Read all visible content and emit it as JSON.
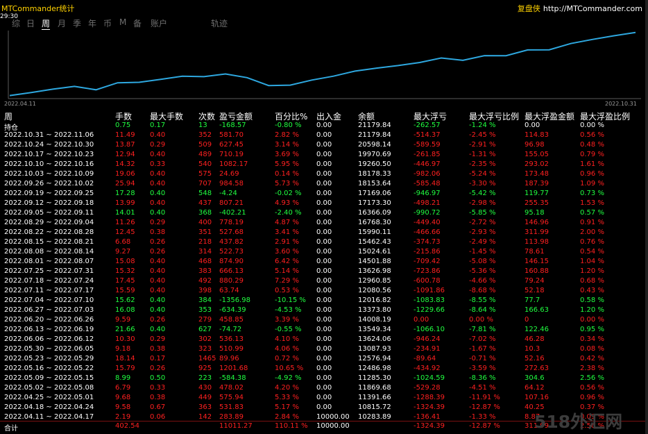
{
  "app": {
    "title": "MTCommander统计",
    "brand": "复盘侠",
    "url": "http://MTCommander.com",
    "clock": "29:30"
  },
  "tabs": [
    "综",
    "日",
    "周",
    "月",
    "季",
    "年",
    "币",
    "M",
    "备",
    "账户",
    "轨迹"
  ],
  "active_tab": "周",
  "chart": {
    "start_label": "2022.04.11",
    "end_label": "2022.10.31",
    "line_color": "#2ea8e0",
    "series": [
      10283.89,
      10815.72,
      11391.66,
      11869.68,
      11285.3,
      12486.98,
      12576.94,
      13087.93,
      13624.06,
      13549.34,
      14008.19,
      13373.8,
      12016.82,
      12080.56,
      12960.85,
      13626.98,
      14501.88,
      15024.61,
      15462.43,
      15990.11,
      16768.3,
      16366.09,
      17173.3,
      17169.06,
      18153.64,
      18178.33,
      19260.5,
      19970.69,
      20598.14,
      21179.84
    ]
  },
  "headers": [
    "周",
    "手数",
    "最大手数",
    "次数",
    "盈亏金额",
    "百分比%",
    "出入金",
    "余额",
    "最大浮亏",
    "最大浮亏比例",
    "最大浮盈金额",
    "最大浮盈比例"
  ],
  "rows": [
    {
      "c": "w",
      "v": [
        "持仓",
        "0.75",
        "0.17",
        "13",
        "-168.57",
        "-0.80 %",
        "0.00",
        "21179.84",
        "-262.57",
        "-1.24 %",
        "0.00",
        "0.00 %"
      ]
    },
    {
      "c": "r",
      "v": [
        "2022.10.31 ~ 2022.11.06",
        "11.49",
        "0.40",
        "352",
        "581.70",
        "2.82 %",
        "0.00",
        "21179.84",
        "-514.37",
        "-2.45 %",
        "114.83",
        "0.56 %"
      ]
    },
    {
      "c": "r",
      "v": [
        "2022.10.24 ~ 2022.10.30",
        "13.87",
        "0.29",
        "509",
        "627.45",
        "3.14 %",
        "0.00",
        "20598.14",
        "-589.59",
        "-2.91 %",
        "96.98",
        "0.48 %"
      ]
    },
    {
      "c": "r",
      "v": [
        "2022.10.17 ~ 2022.10.23",
        "12.94",
        "0.40",
        "489",
        "710.19",
        "3.69 %",
        "0.00",
        "19970.69",
        "-261.85",
        "-1.31 %",
        "155.05",
        "0.79 %"
      ]
    },
    {
      "c": "r",
      "v": [
        "2022.10.10 ~ 2022.10.16",
        "14.32",
        "0.33",
        "540",
        "1082.17",
        "5.95 %",
        "0.00",
        "19260.50",
        "-446.97",
        "-2.35 %",
        "293.02",
        "1.61 %"
      ]
    },
    {
      "c": "r",
      "v": [
        "2022.10.03 ~ 2022.10.09",
        "19.06",
        "0.40",
        "575",
        "24.69",
        "0.14 %",
        "0.00",
        "18178.33",
        "-982.06",
        "-5.24 %",
        "173.48",
        "0.96 %"
      ]
    },
    {
      "c": "r",
      "v": [
        "2022.09.26 ~ 2022.10.02",
        "25.94",
        "0.40",
        "707",
        "984.58",
        "5.73 %",
        "0.00",
        "18153.64",
        "-585.48",
        "-3.30 %",
        "187.39",
        "1.09 %"
      ]
    },
    {
      "c": "g",
      "v": [
        "2022.09.19 ~ 2022.09.25",
        "17.28",
        "0.40",
        "548",
        "-4.24",
        "-0.02 %",
        "0.00",
        "17169.06",
        "-946.97",
        "-5.42 %",
        "119.77",
        "0.73 %"
      ]
    },
    {
      "c": "r",
      "v": [
        "2022.09.12 ~ 2022.09.18",
        "13.99",
        "0.40",
        "437",
        "807.21",
        "4.93 %",
        "0.00",
        "17173.30",
        "-498.21",
        "-2.98 %",
        "255.35",
        "1.53 %"
      ]
    },
    {
      "c": "g",
      "v": [
        "2022.09.05 ~ 2022.09.11",
        "14.01",
        "0.40",
        "368",
        "-402.21",
        "-2.40 %",
        "0.00",
        "16366.09",
        "-990.72",
        "-5.85 %",
        "95.18",
        "0.57 %"
      ]
    },
    {
      "c": "r",
      "v": [
        "2022.08.29 ~ 2022.09.04",
        "11.26",
        "0.29",
        "400",
        "778.19",
        "4.87 %",
        "0.00",
        "16768.30",
        "-449.40",
        "-2.72 %",
        "146.96",
        "0.91 %"
      ]
    },
    {
      "c": "r",
      "v": [
        "2022.08.22 ~ 2022.08.28",
        "12.45",
        "0.38",
        "351",
        "527.68",
        "3.41 %",
        "0.00",
        "15990.11",
        "-466.66",
        "-2.93 %",
        "311.99",
        "2.00 %"
      ]
    },
    {
      "c": "r",
      "v": [
        "2022.08.15 ~ 2022.08.21",
        "6.68",
        "0.26",
        "218",
        "437.82",
        "2.91 %",
        "0.00",
        "15462.43",
        "-374.73",
        "-2.49 %",
        "113.98",
        "0.76 %"
      ]
    },
    {
      "c": "r",
      "v": [
        "2022.08.08 ~ 2022.08.14",
        "9.27",
        "0.26",
        "314",
        "522.73",
        "3.60 %",
        "0.00",
        "15024.61",
        "-215.86",
        "-1.45 %",
        "78.61",
        "0.54 %"
      ]
    },
    {
      "c": "r",
      "v": [
        "2022.08.01 ~ 2022.08.07",
        "15.08",
        "0.40",
        "468",
        "874.90",
        "6.42 %",
        "0.00",
        "14501.88",
        "-709.42",
        "-5.08 %",
        "146.15",
        "1.04 %"
      ]
    },
    {
      "c": "r",
      "v": [
        "2022.07.25 ~ 2022.07.31",
        "15.32",
        "0.40",
        "383",
        "666.13",
        "5.14 %",
        "0.00",
        "13626.98",
        "-723.86",
        "-5.36 %",
        "160.88",
        "1.20 %"
      ]
    },
    {
      "c": "r",
      "v": [
        "2022.07.18 ~ 2022.07.24",
        "17.45",
        "0.40",
        "492",
        "880.29",
        "7.29 %",
        "0.00",
        "12960.85",
        "-600.78",
        "-4.66 %",
        "79.24",
        "0.68 %"
      ]
    },
    {
      "c": "r",
      "v": [
        "2022.07.11 ~ 2022.07.17",
        "15.59",
        "0.40",
        "398",
        "63.74",
        "0.53 %",
        "0.00",
        "12080.56",
        "-1091.86",
        "-8.68 %",
        "52.18",
        "0.43 %"
      ]
    },
    {
      "c": "g",
      "v": [
        "2022.07.04 ~ 2022.07.10",
        "15.62",
        "0.40",
        "384",
        "-1356.98",
        "-10.15 %",
        "0.00",
        "12016.82",
        "-1083.83",
        "-8.55 %",
        "77.7",
        "0.58 %"
      ]
    },
    {
      "c": "g",
      "v": [
        "2022.06.27 ~ 2022.07.03",
        "16.08",
        "0.40",
        "353",
        "-634.39",
        "-4.53 %",
        "0.00",
        "13373.80",
        "-1229.66",
        "-8.64 %",
        "166.63",
        "1.20 %"
      ]
    },
    {
      "c": "r",
      "v": [
        "2022.06.20 ~ 2022.06.26",
        "9.59",
        "0.26",
        "279",
        "458.85",
        "3.39 %",
        "0.00",
        "14008.19",
        "0.00",
        "0.00 %",
        "0",
        "0.00 %"
      ]
    },
    {
      "c": "g",
      "v": [
        "2022.06.13 ~ 2022.06.19",
        "21.66",
        "0.40",
        "627",
        "-74.72",
        "-0.55 %",
        "0.00",
        "13549.34",
        "-1066.10",
        "-7.81 %",
        "122.46",
        "0.95 %"
      ]
    },
    {
      "c": "r",
      "v": [
        "2022.06.06 ~ 2022.06.12",
        "10.30",
        "0.29",
        "302",
        "536.13",
        "4.10 %",
        "0.00",
        "13624.06",
        "-946.24",
        "-7.02 %",
        "46.28",
        "0.34 %"
      ]
    },
    {
      "c": "r",
      "v": [
        "2022.05.30 ~ 2022.06.05",
        "9.18",
        "0.38",
        "323",
        "510.99",
        "4.06 %",
        "0.00",
        "13087.93",
        "-234.91",
        "-1.67 %",
        "10.3",
        "0.08 %"
      ]
    },
    {
      "c": "r",
      "v": [
        "2022.05.23 ~ 2022.05.29",
        "18.14",
        "0.17",
        "1465",
        "89.96",
        "0.72 %",
        "0.00",
        "12576.94",
        "-89.64",
        "-0.71 %",
        "52.16",
        "0.42 %"
      ]
    },
    {
      "c": "r",
      "v": [
        "2022.05.16 ~ 2022.05.22",
        "15.79",
        "0.26",
        "925",
        "1201.68",
        "10.65 %",
        "0.00",
        "12486.98",
        "-434.92",
        "-3.59 %",
        "272.63",
        "2.38 %"
      ]
    },
    {
      "c": "g",
      "v": [
        "2022.05.09 ~ 2022.05.15",
        "8.99",
        "0.50",
        "223",
        "-584.38",
        "-4.92 %",
        "0.00",
        "11285.30",
        "-1024.59",
        "-8.36 %",
        "304.6",
        "2.56 %"
      ]
    },
    {
      "c": "r",
      "v": [
        "2022.05.02 ~ 2022.05.08",
        "6.79",
        "0.33",
        "430",
        "478.02",
        "4.20 %",
        "0.00",
        "11869.68",
        "-529.28",
        "-4.51 %",
        "64.12",
        "0.56 %"
      ]
    },
    {
      "c": "r",
      "v": [
        "2022.04.25 ~ 2022.05.01",
        "9.68",
        "0.38",
        "449",
        "575.94",
        "5.33 %",
        "0.00",
        "11391.66",
        "-1288.39",
        "-11.91 %",
        "107.16",
        "0.96 %"
      ]
    },
    {
      "c": "r",
      "v": [
        "2022.04.18 ~ 2022.04.24",
        "9.58",
        "0.67",
        "363",
        "531.83",
        "5.17 %",
        "0.00",
        "10815.72",
        "-1324.39",
        "-12.87 %",
        "40.25",
        "0.37 %"
      ]
    },
    {
      "c": "r",
      "v": [
        "2022.04.11 ~ 2022.04.17",
        "2.19",
        "0.06",
        "142",
        "283.89",
        "2.84 %",
        "10000.00",
        "10283.89",
        "-136.41",
        "-1.33 %",
        "8.87",
        "0.09 %"
      ]
    }
  ],
  "total": {
    "c": "r",
    "v": [
      "合计",
      "402.54",
      "",
      "",
      "11011.27",
      "110.11 %",
      "10000.00",
      "",
      "-1324.39",
      "-12.87 %",
      "311.99",
      "2.56 %"
    ]
  },
  "colors": {
    "profit": "#ff2020",
    "loss": "#20ff40",
    "neutral": "#ffffff",
    "title": "#ffd200"
  },
  "watermark": "518外汇网"
}
